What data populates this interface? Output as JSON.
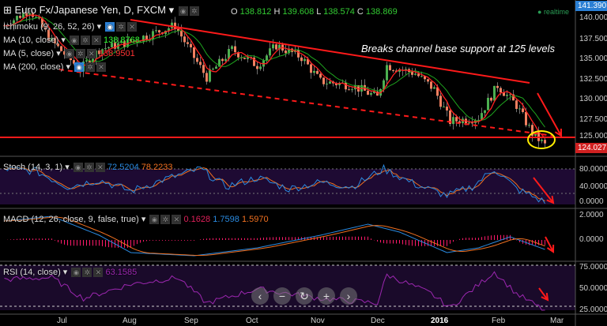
{
  "header": {
    "symbol": "Euro Fx/Japanese Yen, D, FXCM",
    "o_label": "O",
    "o": "138.812",
    "h_label": "H",
    "h": "139.608",
    "l_label": "L",
    "l": "138.574",
    "c_label": "C",
    "c": "138.869",
    "realtime": "realtime"
  },
  "indicators": {
    "ichimoku": "Ichimoku (9, 26, 52, 26)",
    "ma10": "MA (10, close)",
    "ma10_value": "138.8768",
    "ma5": "MA (5, close)",
    "ma5_value": "138.9501",
    "ma200": "MA (200, close)",
    "stoch": "Stoch (14, 3, 1)",
    "stoch_k": "72.5204",
    "stoch_d": "78.2233",
    "macd": "MACD (12, 26, close, 9, false, true)",
    "macd_hist": "0.1628",
    "macd_line": "1.7598",
    "macd_signal": "1.5970",
    "rsi": "RSI (14, close)",
    "rsi_value": "63.1585"
  },
  "annotation": "Breaks channel base support at 125 levels",
  "price_axis": {
    "ticks": [
      "140.000",
      "137.500",
      "135.000",
      "132.500",
      "130.000",
      "127.500",
      "125.000"
    ],
    "top_tag": "141.390",
    "last_tag": "124.027"
  },
  "stoch_axis": [
    "80.0000",
    "40.0000",
    "0.0000"
  ],
  "macd_axis": [
    "2.0000",
    "0.0000"
  ],
  "rsi_axis": [
    "75.0000",
    "50.0000",
    "25.0000"
  ],
  "x_axis": [
    "Jul",
    "Aug",
    "Sep",
    "Oct",
    "Nov",
    "Dec",
    "2016",
    "Feb",
    "Mar"
  ],
  "colors": {
    "up": "#4caf50",
    "down": "#f08060",
    "trend": "#ff1a1a",
    "ma_red": "#ff2020",
    "ma_green": "#1fa51f",
    "stoch_k": "#2a8ae0",
    "stoch_d": "#f07020",
    "rsi": "#9c27b0",
    "hist": "#ff1a6a"
  },
  "chart_data": {
    "type": "candlestick",
    "price_path": [
      [
        0,
        139
      ],
      [
        8,
        141
      ],
      [
        15,
        137
      ],
      [
        24,
        133.5
      ],
      [
        30,
        136
      ],
      [
        40,
        137
      ],
      [
        54,
        139
      ],
      [
        60,
        135
      ],
      [
        64,
        132.5
      ],
      [
        72,
        136
      ],
      [
        80,
        134
      ],
      [
        86,
        136.5
      ],
      [
        94,
        135
      ],
      [
        100,
        132
      ],
      [
        110,
        131.5
      ],
      [
        118,
        130
      ],
      [
        121,
        134
      ],
      [
        130,
        133
      ],
      [
        136,
        131
      ],
      [
        141,
        127
      ],
      [
        150,
        127.5
      ],
      [
        156,
        131.5
      ],
      [
        162,
        129
      ],
      [
        167,
        125.5
      ],
      [
        171,
        124
      ]
    ],
    "stoch": [
      [
        0,
        80
      ],
      [
        10,
        75
      ],
      [
        20,
        40
      ],
      [
        30,
        55
      ],
      [
        40,
        30
      ],
      [
        50,
        55
      ],
      [
        62,
        80
      ],
      [
        70,
        40
      ],
      [
        80,
        60
      ],
      [
        90,
        35
      ],
      [
        100,
        50
      ],
      [
        110,
        40
      ],
      [
        120,
        80
      ],
      [
        130,
        45
      ],
      [
        140,
        20
      ],
      [
        148,
        40
      ],
      [
        155,
        80
      ],
      [
        162,
        35
      ],
      [
        171,
        5
      ]
    ],
    "macd_level": [
      [
        0,
        1.2
      ],
      [
        15,
        1.5
      ],
      [
        30,
        0.3
      ],
      [
        40,
        -0.8
      ],
      [
        60,
        -1.0
      ],
      [
        80,
        -0.5
      ],
      [
        100,
        0.3
      ],
      [
        115,
        1.0
      ],
      [
        125,
        0.5
      ],
      [
        140,
        -0.8
      ],
      [
        150,
        -0.5
      ],
      [
        160,
        0.2
      ],
      [
        171,
        -0.6
      ]
    ],
    "rsi": [
      [
        0,
        60
      ],
      [
        15,
        62
      ],
      [
        25,
        40
      ],
      [
        40,
        55
      ],
      [
        55,
        62
      ],
      [
        64,
        35
      ],
      [
        80,
        50
      ],
      [
        100,
        40
      ],
      [
        118,
        35
      ],
      [
        121,
        65
      ],
      [
        135,
        45
      ],
      [
        141,
        30
      ],
      [
        155,
        68
      ],
      [
        162,
        45
      ],
      [
        171,
        27
      ]
    ]
  }
}
